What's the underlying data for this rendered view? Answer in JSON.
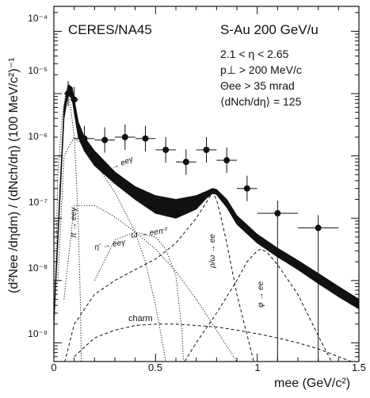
{
  "chart_data": {
    "type": "scatter",
    "title_left": "CERES/NA45",
    "title_right": "S-Au 200 GeV/u",
    "cuts": [
      "2.1 < η < 2.65",
      "p⊥ > 200 MeV/c",
      "Θee > 35 mrad",
      "⟨dNch/dη⟩ = 125"
    ],
    "xlabel": "mee (GeV/c²)",
    "ylabel": "(d²Nee /dηdm) / (dNch/dη) (100 MeV/c²)⁻¹",
    "x_ticks": [
      "0",
      "0.5",
      "1",
      "1.5"
    ],
    "y_ticks": [
      "10⁻⁹",
      "10⁻⁸",
      "10⁻⁷",
      "10⁻⁶",
      "10⁻⁵",
      "10⁻⁴"
    ],
    "xlim": [
      0,
      1.5
    ],
    "ylim_log10": [
      -9.3,
      -3.6
    ],
    "y_scale": "log",
    "data_points": [
      {
        "x": 0.07,
        "y": 1e-05,
        "xerr": 0.02
      },
      {
        "x": 0.1,
        "y": 8e-06,
        "xerr": 0.02
      },
      {
        "x": 0.15,
        "y": 1.9e-06,
        "xerr": 0.05
      },
      {
        "x": 0.25,
        "y": 1.8e-06,
        "xerr": 0.05
      },
      {
        "x": 0.35,
        "y": 2e-06,
        "xerr": 0.05
      },
      {
        "x": 0.45,
        "y": 1.9e-06,
        "xerr": 0.05
      },
      {
        "x": 0.55,
        "y": 1.25e-06,
        "xerr": 0.05
      },
      {
        "x": 0.65,
        "y": 8e-07,
        "xerr": 0.05
      },
      {
        "x": 0.75,
        "y": 1.25e-06,
        "xerr": 0.05
      },
      {
        "x": 0.85,
        "y": 8.5e-07,
        "xerr": 0.05
      },
      {
        "x": 0.95,
        "y": 3e-07,
        "xerr": 0.05
      },
      {
        "x": 1.1,
        "y": 1.2e-07,
        "xerr": 0.1
      },
      {
        "x": 1.3,
        "y": 7e-08,
        "xerr": 0.1
      }
    ],
    "total_band": {
      "x": [
        0.0,
        0.03,
        0.05,
        0.07,
        0.09,
        0.1,
        0.12,
        0.15,
        0.2,
        0.3,
        0.4,
        0.5,
        0.6,
        0.7,
        0.75,
        0.78,
        0.8,
        0.85,
        0.9,
        1.0,
        1.1,
        1.2,
        1.3,
        1.4,
        1.5
      ],
      "low": [
        2e-09,
        2e-07,
        4e-06,
        1e-05,
        8e-06,
        5e-06,
        2e-06,
        1.2e-06,
        7e-07,
        3.6e-07,
        2e-07,
        1.2e-07,
        1e-07,
        1.4e-07,
        2.1e-07,
        2.5e-07,
        2.4e-07,
        1.5e-07,
        8e-08,
        4e-08,
        2.4e-08,
        1.5e-08,
        9e-09,
        5.5e-09,
        3.5e-09
      ],
      "high": [
        2.5e-09,
        3e-07,
        6e-06,
        1.4e-05,
        1.25e-05,
        8e-06,
        3.5e-06,
        2e-06,
        1.2e-06,
        5.5e-07,
        3.2e-07,
        2.3e-07,
        2e-07,
        2.3e-07,
        2.7e-07,
        3e-07,
        2.9e-07,
        2e-07,
        1.1e-07,
        5.5e-08,
        3.3e-08,
        2.1e-08,
        1.3e-08,
        8e-09,
        5e-09
      ]
    },
    "components": [
      {
        "name": "π → eeγ",
        "style": "dotted",
        "x": [
          0.0,
          0.02,
          0.04,
          0.06,
          0.08,
          0.1,
          0.11,
          0.12,
          0.13,
          0.135
        ],
        "y": [
          1e-09,
          5e-07,
          4e-06,
          1.1e-05,
          7e-06,
          2e-06,
          5e-07,
          8e-08,
          5e-09,
          4e-10
        ]
      },
      {
        "name": "η → eeγ",
        "style": "dotted",
        "x": [
          0.02,
          0.05,
          0.1,
          0.15,
          0.2,
          0.3,
          0.4,
          0.45,
          0.5,
          0.53,
          0.55
        ],
        "y": [
          1e-08,
          1e-06,
          2e-06,
          1.4e-06,
          8e-07,
          2.6e-07,
          6e-08,
          2e-08,
          4e-09,
          1.2e-09,
          5e-10
        ]
      },
      {
        "name": "η' → eeγ",
        "style": "dotted",
        "x": [
          0.05,
          0.1,
          0.2,
          0.3,
          0.4,
          0.5,
          0.6,
          0.7,
          0.8,
          0.9,
          0.95
        ],
        "y": [
          5e-09,
          1.6e-07,
          1.6e-07,
          1.05e-07,
          6e-08,
          3.2e-08,
          1.4e-08,
          5e-09,
          1.6e-09,
          5e-10,
          3e-10
        ]
      },
      {
        "name": "ω → eeπ⁰",
        "style": "dotted",
        "x": [
          0.2,
          0.3,
          0.4,
          0.5,
          0.55,
          0.6,
          0.63,
          0.64
        ],
        "y": [
          1e-08,
          4.5e-08,
          6e-08,
          5e-08,
          3.2e-08,
          1.2e-08,
          1.5e-09,
          3e-10
        ]
      },
      {
        "name": "ρ/ω → ee",
        "style": "dashed",
        "x": [
          0.0,
          0.1,
          0.2,
          0.3,
          0.4,
          0.5,
          0.6,
          0.7,
          0.75,
          0.78,
          0.8,
          0.82,
          0.85,
          0.9,
          1.0
        ],
        "y": [
          1e-10,
          2e-09,
          6e-09,
          1e-08,
          1.5e-08,
          2.2e-08,
          4e-08,
          1e-07,
          1.8e-07,
          2.6e-07,
          2e-07,
          1.1e-07,
          4e-08,
          6e-09,
          3e-10
        ]
      },
      {
        "name": "φ → ee",
        "style": "dashed",
        "x": [
          0.6,
          0.7,
          0.8,
          0.9,
          0.95,
          1.0,
          1.02,
          1.05,
          1.1,
          1.2,
          1.3,
          1.4,
          1.5
        ],
        "y": [
          3e-10,
          1e-09,
          3e-09,
          1e-08,
          2e-08,
          3e-08,
          3.2e-08,
          2.8e-08,
          1.8e-08,
          6e-09,
          1.3e-09,
          3e-10,
          1e-10
        ]
      },
      {
        "name": "charm",
        "style": "dashed",
        "x": [
          0.1,
          0.2,
          0.3,
          0.4,
          0.5,
          0.6,
          0.7,
          0.8,
          0.9,
          1.0,
          1.1,
          1.2,
          1.3,
          1.4,
          1.5
        ],
        "y": [
          6e-10,
          1.2e-09,
          1.6e-09,
          1.9e-09,
          2e-09,
          2e-09,
          1.9e-09,
          1.8e-09,
          1.6e-09,
          1.4e-09,
          1.2e-09,
          1e-09,
          8e-10,
          6e-10,
          4.5e-10
        ]
      }
    ]
  }
}
